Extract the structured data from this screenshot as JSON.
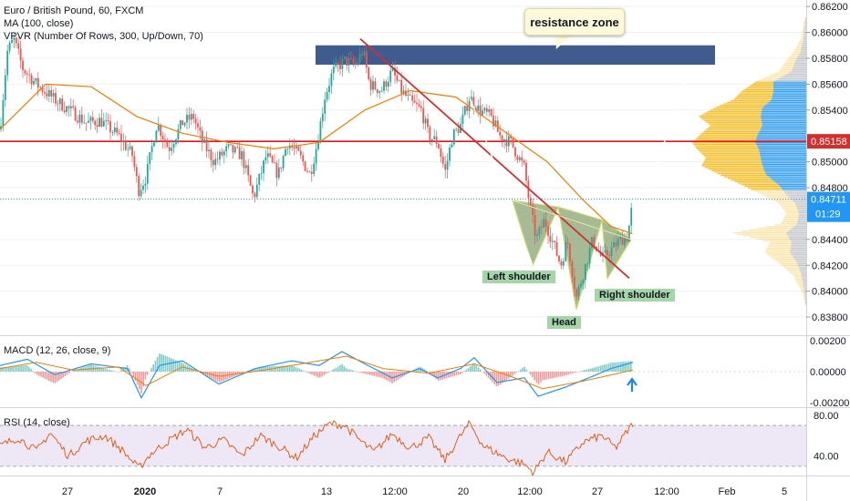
{
  "header": {
    "title": "Euro / British Pound, 60, FXCM",
    "ma_label": "MA (100, close)",
    "vpvr_label": "VPVR (Number Of Rows, 300, Up/Down, 70)"
  },
  "annotations": {
    "resistance": "resistance zone",
    "left_shoulder": "Left shoulder",
    "head": "Head",
    "right_shoulder": "Right shoulder"
  },
  "macd": {
    "label": "MACD (12, 26, close, 9)"
  },
  "rsi": {
    "label": "RSI (14, close)"
  },
  "price_axis": {
    "ticks": [
      "0.86200",
      "0.86000",
      "0.85800",
      "0.85600",
      "0.85400",
      "0.85000",
      "0.84800",
      "0.84400",
      "0.84200",
      "0.84000",
      "0.83800"
    ],
    "tick_values": [
      0.862,
      0.86,
      0.858,
      0.856,
      0.854,
      0.85,
      0.848,
      0.844,
      0.842,
      0.84,
      0.838
    ],
    "current_price": "0.84711",
    "countdown": "01:29",
    "level_price": "0.85158",
    "partial_label": "0.",
    "macd_ticks": [
      "0.00200",
      "0.00000",
      "-0.00200"
    ],
    "macd_tick_values": [
      0.002,
      0,
      -0.002
    ],
    "rsi_ticks": [
      "80.00",
      "40.00"
    ],
    "rsi_tick_values": [
      80,
      40
    ]
  },
  "time_axis": {
    "labels": [
      "27",
      "2020",
      "7",
      "13",
      "12:00",
      "20",
      "12:00",
      "27",
      "12:00",
      "Feb",
      "5"
    ]
  },
  "colors": {
    "up": "#26a69a",
    "down": "#ef5350",
    "ma": "#f57c00",
    "level": "#e8141d",
    "resistance": "#1f3f7a",
    "pattern": "#6b8e4e",
    "vp_up": "#f2b91a",
    "vp_down": "#2196f3",
    "macd": "#2196f3",
    "signal": "#f57c00",
    "rsi": "#e65100",
    "rsi_band": "#ede7f6",
    "current": "#2196f3"
  },
  "chart_data": {
    "type": "candlestick",
    "symbol": "Euro / British Pound",
    "timeframe": "60",
    "y_range": [
      0.8366,
      0.8625
    ],
    "levels": {
      "horizontal_level": 0.85158,
      "current_price": 0.84711
    },
    "resistance_zone": [
      0.8575,
      0.859
    ],
    "price_path": [
      [
        0,
        0.8525
      ],
      [
        8,
        0.8585
      ],
      [
        15,
        0.8595
      ],
      [
        25,
        0.8572
      ],
      [
        40,
        0.856
      ],
      [
        60,
        0.8548
      ],
      [
        80,
        0.8538
      ],
      [
        95,
        0.853
      ],
      [
        110,
        0.8532
      ],
      [
        130,
        0.852
      ],
      [
        145,
        0.8505
      ],
      [
        152,
        0.8478
      ],
      [
        160,
        0.8488
      ],
      [
        172,
        0.853
      ],
      [
        185,
        0.851
      ],
      [
        200,
        0.853
      ],
      [
        212,
        0.8535
      ],
      [
        222,
        0.8515
      ],
      [
        235,
        0.85
      ],
      [
        250,
        0.851
      ],
      [
        265,
        0.8505
      ],
      [
        278,
        0.8472
      ],
      [
        292,
        0.8505
      ],
      [
        305,
        0.849
      ],
      [
        315,
        0.8515
      ],
      [
        328,
        0.8505
      ],
      [
        340,
        0.849
      ],
      [
        348,
        0.8515
      ],
      [
        356,
        0.855
      ],
      [
        365,
        0.857
      ],
      [
        378,
        0.8578
      ],
      [
        390,
        0.8575
      ],
      [
        398,
        0.8586
      ],
      [
        405,
        0.856
      ],
      [
        418,
        0.8555
      ],
      [
        430,
        0.857
      ],
      [
        440,
        0.8555
      ],
      [
        452,
        0.8545
      ],
      [
        462,
        0.854
      ],
      [
        470,
        0.852
      ],
      [
        480,
        0.8515
      ],
      [
        488,
        0.8492
      ],
      [
        496,
        0.852
      ],
      [
        505,
        0.8528
      ],
      [
        515,
        0.855
      ],
      [
        525,
        0.854
      ],
      [
        538,
        0.8535
      ],
      [
        548,
        0.852
      ],
      [
        560,
        0.8515
      ],
      [
        575,
        0.8495
      ],
      [
        580,
        0.847
      ],
      [
        588,
        0.844
      ],
      [
        597,
        0.8455
      ],
      [
        605,
        0.844
      ],
      [
        615,
        0.842
      ],
      [
        622,
        0.844
      ],
      [
        632,
        0.8395
      ],
      [
        642,
        0.842
      ],
      [
        650,
        0.844
      ],
      [
        660,
        0.8425
      ],
      [
        670,
        0.8432
      ],
      [
        680,
        0.844
      ],
      [
        688,
        0.8442
      ],
      [
        694,
        0.847
      ]
    ],
    "ma_100": [
      [
        0,
        0.8525
      ],
      [
        50,
        0.856
      ],
      [
        100,
        0.8558
      ],
      [
        150,
        0.8535
      ],
      [
        200,
        0.8522
      ],
      [
        250,
        0.8515
      ],
      [
        300,
        0.851
      ],
      [
        350,
        0.8515
      ],
      [
        400,
        0.854
      ],
      [
        450,
        0.8555
      ],
      [
        500,
        0.855
      ],
      [
        550,
        0.8525
      ],
      [
        600,
        0.85
      ],
      [
        640,
        0.847
      ],
      [
        670,
        0.845
      ],
      [
        695,
        0.8444
      ]
    ],
    "pattern": {
      "left_shoulder": [
        [
          562,
          0.847
        ],
        [
          584,
          0.842
        ],
        [
          612,
          0.8465
        ]
      ],
      "head": [
        [
          612,
          0.8465
        ],
        [
          632,
          0.8386
        ],
        [
          660,
          0.8455
        ]
      ],
      "right_shoulder": [
        [
          660,
          0.8455
        ],
        [
          666,
          0.841
        ],
        [
          692,
          0.844
        ]
      ],
      "neckline": [
        [
          562,
          0.847
        ],
        [
          692,
          0.844
        ]
      ],
      "projection": [
        [
          692,
          0.844
        ],
        [
          755,
          0.857
        ]
      ],
      "downtrend_line": [
        [
          395,
          0.8595
        ],
        [
          690,
          0.841
        ]
      ],
      "drop_line": [
        [
          515,
          0.855
        ],
        [
          584,
          0.842
        ]
      ]
    },
    "macd": {
      "y_range": [
        -0.0023,
        0.0023
      ],
      "macd_path": [
        [
          0,
          0.0004
        ],
        [
          30,
          0.0008
        ],
        [
          60,
          -0.0002
        ],
        [
          100,
          0.0005
        ],
        [
          140,
          0.0002
        ],
        [
          155,
          -0.0017
        ],
        [
          175,
          0.0004
        ],
        [
          200,
          0.0007
        ],
        [
          240,
          -0.0008
        ],
        [
          280,
          0.0002
        ],
        [
          320,
          0.0007
        ],
        [
          350,
          0.0004
        ],
        [
          375,
          0.0013
        ],
        [
          400,
          0.0005
        ],
        [
          430,
          -0.0004
        ],
        [
          460,
          0.0002
        ],
        [
          480,
          -0.0004
        ],
        [
          505,
          0.0002
        ],
        [
          520,
          0.0009
        ],
        [
          545,
          -0.0007
        ],
        [
          575,
          -0.0004
        ],
        [
          590,
          -0.0016
        ],
        [
          620,
          -0.001
        ],
        [
          650,
          -0.0003
        ],
        [
          670,
          0.0002
        ],
        [
          694,
          0.0006
        ]
      ],
      "signal_path": [
        [
          0,
          0.0002
        ],
        [
          40,
          0.0006
        ],
        [
          80,
          0.0001
        ],
        [
          130,
          0.0003
        ],
        [
          160,
          -0.0009
        ],
        [
          200,
          0.0003
        ],
        [
          240,
          -0.0003
        ],
        [
          290,
          0.0001
        ],
        [
          330,
          0.0005
        ],
        [
          380,
          0.001
        ],
        [
          420,
          0.0002
        ],
        [
          470,
          -0.0001
        ],
        [
          520,
          0.0005
        ],
        [
          560,
          -0.0003
        ],
        [
          595,
          -0.0011
        ],
        [
          640,
          -0.0006
        ],
        [
          694,
          0.0001
        ]
      ]
    },
    "rsi": {
      "y_range": [
        21,
        87
      ],
      "bands": [
        70,
        30
      ],
      "path": [
        [
          0,
          50
        ],
        [
          20,
          58
        ],
        [
          40,
          45
        ],
        [
          55,
          63
        ],
        [
          75,
          40
        ],
        [
          95,
          55
        ],
        [
          115,
          60
        ],
        [
          135,
          45
        ],
        [
          152,
          28
        ],
        [
          165,
          42
        ],
        [
          185,
          55
        ],
        [
          205,
          66
        ],
        [
          225,
          48
        ],
        [
          245,
          56
        ],
        [
          265,
          40
        ],
        [
          285,
          60
        ],
        [
          305,
          50
        ],
        [
          325,
          38
        ],
        [
          345,
          60
        ],
        [
          362,
          72
        ],
        [
          378,
          70
        ],
        [
          395,
          55
        ],
        [
          410,
          44
        ],
        [
          430,
          62
        ],
        [
          450,
          48
        ],
        [
          470,
          58
        ],
        [
          488,
          36
        ],
        [
          505,
          60
        ],
        [
          515,
          72
        ],
        [
          530,
          50
        ],
        [
          555,
          38
        ],
        [
          575,
          32
        ],
        [
          585,
          24
        ],
        [
          600,
          44
        ],
        [
          620,
          34
        ],
        [
          640,
          54
        ],
        [
          660,
          60
        ],
        [
          675,
          48
        ],
        [
          694,
          72
        ]
      ]
    }
  }
}
